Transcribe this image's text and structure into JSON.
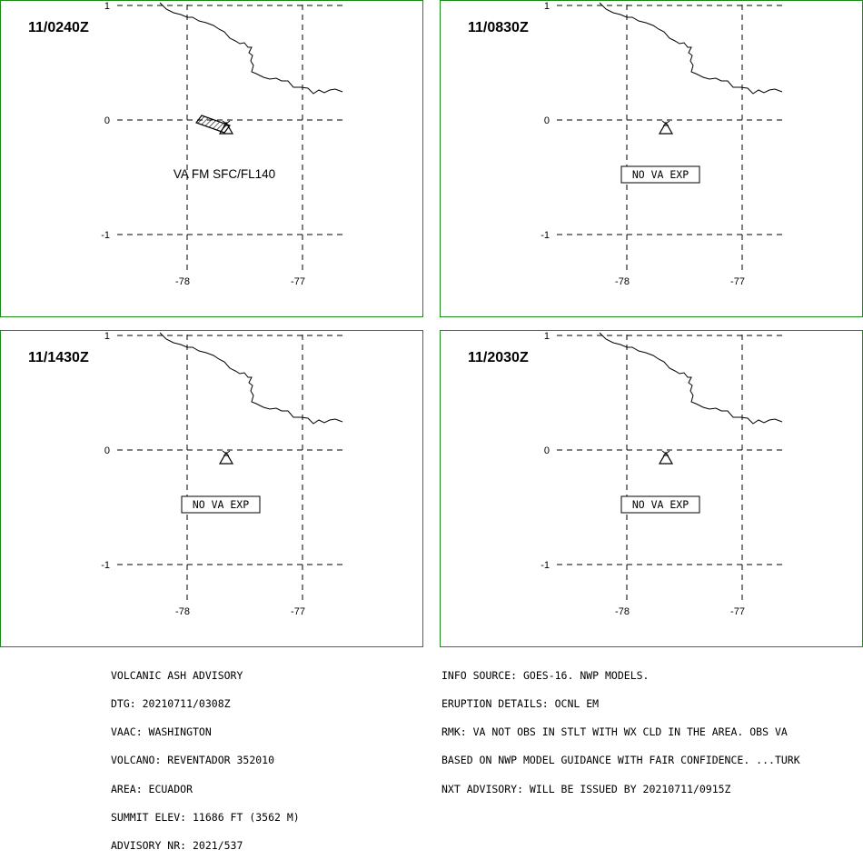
{
  "panels": [
    {
      "time_label": "11/0240Z",
      "annotation": "VA FM SFC/FL140",
      "annotation_boxed": false,
      "ash_polygon": true
    },
    {
      "time_label": "11/0830Z",
      "annotation": "NO VA EXP",
      "annotation_boxed": true,
      "ash_polygon": false
    },
    {
      "time_label": "11/1430Z",
      "annotation": "NO VA EXP",
      "annotation_boxed": true,
      "ash_polygon": false
    },
    {
      "time_label": "11/2030Z",
      "annotation": "NO VA EXP",
      "annotation_boxed": true,
      "ash_polygon": false
    }
  ],
  "grid_labels": {
    "lat_top": "1",
    "lat_mid": "0",
    "lat_bottom": "-1",
    "lon_left": "-78",
    "lon_right": "-77"
  },
  "advisory_left": [
    "VOLCANIC ASH ADVISORY",
    "DTG: 20210711/0308Z",
    "VAAC: WASHINGTON",
    "VOLCANO: REVENTADOR 352010",
    "AREA: ECUADOR",
    "SUMMIT ELEV: 11686 FT (3562 M)",
    "ADVISORY NR: 2021/537"
  ],
  "advisory_right": [
    "INFO SOURCE: GOES-16. NWP MODELS.",
    "ERUPTION DETAILS: OCNL EM",
    "RMK: VA NOT OBS IN STLT WITH WX CLD IN THE AREA. OBS VA",
    "BASED ON NWP MODEL GUIDANCE WITH FAIR CONFIDENCE. ...TURK",
    "NXT ADVISORY: WILL BE ISSUED BY 20210711/0915Z"
  ],
  "colors": {
    "panel_border": "#1a8a1a",
    "lines": "#000000"
  }
}
